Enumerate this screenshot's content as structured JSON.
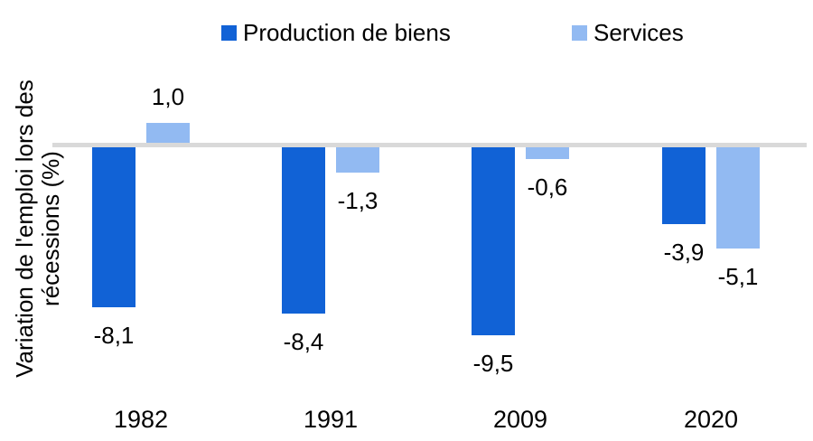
{
  "chart_data": {
    "type": "bar",
    "categories": [
      "1982",
      "1991",
      "2009",
      "2020"
    ],
    "series": [
      {
        "name": "Production de biens",
        "color": "#1162d6",
        "values": [
          -8.1,
          -8.4,
          -9.5,
          -3.9
        ],
        "display_labels": [
          "-8,1",
          "-8,4",
          "-9,5",
          "-3,9"
        ]
      },
      {
        "name": "Services",
        "color": "#92baf2",
        "values": [
          1.0,
          -1.3,
          -0.6,
          -5.1
        ],
        "display_labels": [
          "1,0",
          "-1,3",
          "-0,6",
          "-5,1"
        ]
      }
    ],
    "ylabel": "Variation de l'emploi lors des récessions (%)",
    "ylabel_lines": [
      "Variation de l'emploi lors des",
      "récessions (%)"
    ],
    "xlabel": "",
    "title": "",
    "ylim": [
      -9.5,
      1.0
    ],
    "grid": false,
    "legend_position": "top",
    "baseline_color": "#d9d9d9",
    "text_color": "#000000",
    "background_color": "#ffffff"
  }
}
